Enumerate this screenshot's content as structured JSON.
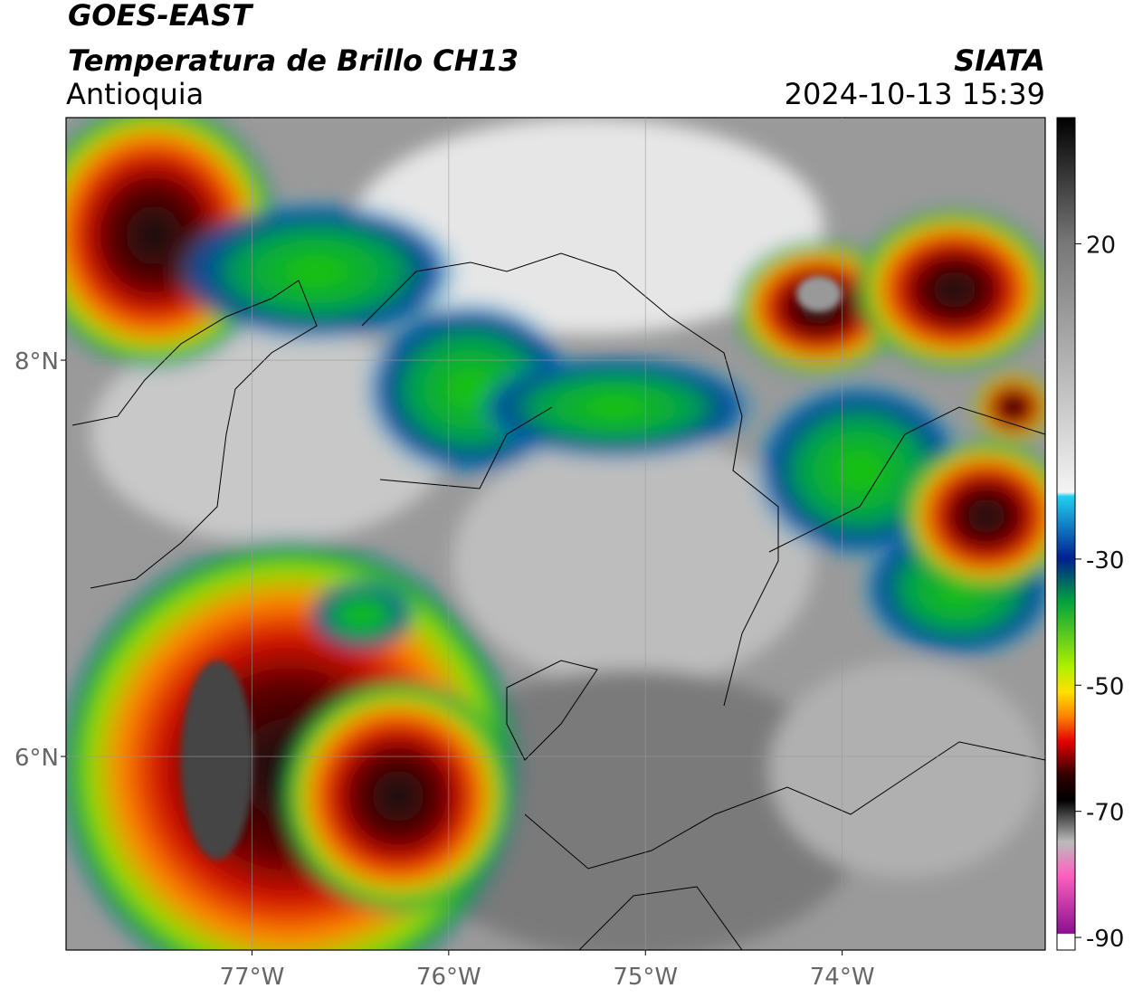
{
  "header": {
    "title": "GOES-EAST",
    "subtitle": "Temperatura de Brillo CH13",
    "region": "Antioquia",
    "source": "SIATA",
    "timestamp": "2024-10-13 15:39"
  },
  "map": {
    "xlim": [
      -77.945,
      -72.968
    ],
    "ylim": [
      5.023,
      9.224
    ],
    "xticks": [
      {
        "value": -77,
        "label": "77°W"
      },
      {
        "value": -76,
        "label": "76°W"
      },
      {
        "value": -75,
        "label": "75°W"
      },
      {
        "value": -74,
        "label": "74°W"
      }
    ],
    "yticks": [
      {
        "value": 8,
        "label": "8°N"
      },
      {
        "value": 6,
        "label": "6°N"
      }
    ],
    "grid": true
  },
  "colorbar": {
    "lim": [
      -92,
      40
    ],
    "ticks": [
      20,
      -30,
      -50,
      -70,
      -90
    ]
  }
}
